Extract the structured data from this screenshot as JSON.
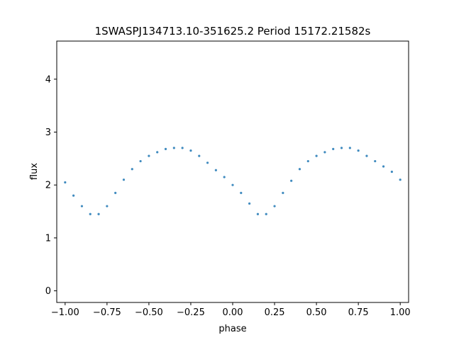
{
  "chart_data": {
    "type": "scatter",
    "title": "1SWASPJ134713.10-351625.2 Period 15172.21582s",
    "xlabel": "phase",
    "ylabel": "flux",
    "xlim": [
      -1.05,
      1.05
    ],
    "ylim": [
      -0.22,
      4.72
    ],
    "xticks": [
      -1.0,
      -0.75,
      -0.5,
      -0.25,
      0.0,
      0.25,
      0.5,
      0.75,
      1.0
    ],
    "xtick_labels": [
      "−1.00",
      "−0.75",
      "−0.50",
      "−0.25",
      "0.00",
      "0.25",
      "0.50",
      "0.75",
      "1.00"
    ],
    "yticks": [
      0,
      1,
      2,
      3,
      4
    ],
    "ytick_labels": [
      "0",
      "1",
      "2",
      "3",
      "4"
    ],
    "grid": false,
    "legend": "none",
    "point_color": "#1f77b4",
    "series": [
      {
        "points": [
          [
            -1.0,
            2.05
          ],
          [
            -0.95,
            1.8
          ],
          [
            -0.9,
            1.6
          ],
          [
            -0.85,
            1.45
          ],
          [
            -0.8,
            1.45
          ],
          [
            -0.75,
            1.6
          ],
          [
            -0.7,
            1.85
          ],
          [
            -0.65,
            2.1
          ],
          [
            -0.6,
            2.3
          ],
          [
            -0.55,
            2.45
          ],
          [
            -0.5,
            2.55
          ],
          [
            -0.45,
            2.62
          ],
          [
            -0.4,
            2.68
          ],
          [
            -0.35,
            2.7
          ],
          [
            -0.3,
            2.7
          ],
          [
            -0.25,
            2.65
          ],
          [
            -0.2,
            2.55
          ],
          [
            -0.15,
            2.42
          ],
          [
            -0.1,
            2.28
          ],
          [
            -0.05,
            2.15
          ],
          [
            0.0,
            2.0
          ],
          [
            0.05,
            1.85
          ],
          [
            0.1,
            1.65
          ],
          [
            0.15,
            1.45
          ],
          [
            0.2,
            1.45
          ],
          [
            0.25,
            1.6
          ],
          [
            0.3,
            1.85
          ],
          [
            0.35,
            2.08
          ],
          [
            0.4,
            2.3
          ],
          [
            0.45,
            2.45
          ],
          [
            0.5,
            2.55
          ],
          [
            0.55,
            2.62
          ],
          [
            0.6,
            2.68
          ],
          [
            0.65,
            2.7
          ],
          [
            0.7,
            2.7
          ],
          [
            0.75,
            2.65
          ],
          [
            0.8,
            2.55
          ],
          [
            0.85,
            2.45
          ],
          [
            0.9,
            2.35
          ],
          [
            0.95,
            2.25
          ],
          [
            1.0,
            2.1
          ]
        ]
      }
    ]
  }
}
